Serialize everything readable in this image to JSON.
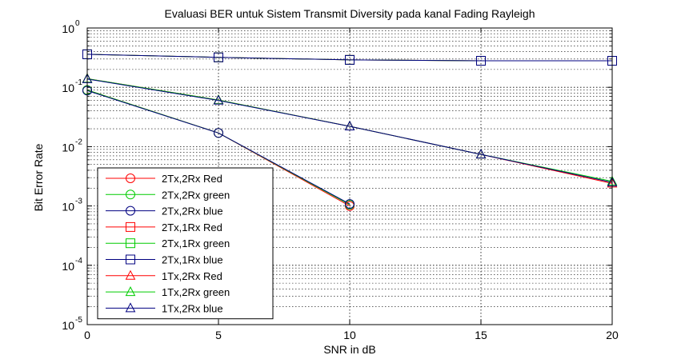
{
  "chart_data": {
    "type": "line",
    "title": "Evaluasi BER untuk Sistem Transmit Diversity pada kanal Fading Rayleigh",
    "xlabel": "SNR in dB",
    "ylabel": "Bit Error Rate",
    "xlim": [
      0,
      20
    ],
    "ylim": [
      1e-05,
      1
    ],
    "yscale": "log",
    "grid": true,
    "legend_position": "bottom-left",
    "xticks": [
      "0",
      "5",
      "10",
      "15",
      "20"
    ],
    "yticks": [
      {
        "base": "10",
        "exp": "0"
      },
      {
        "base": "10",
        "exp": "-1"
      },
      {
        "base": "10",
        "exp": "-2"
      },
      {
        "base": "10",
        "exp": "-3"
      },
      {
        "base": "10",
        "exp": "-4"
      },
      {
        "base": "10",
        "exp": "-5"
      }
    ],
    "series": [
      {
        "name": "2Tx,2Rx Red",
        "color": "#ff0000",
        "marker": "circle",
        "x": [
          0,
          5,
          10
        ],
        "y": [
          0.09,
          0.017,
          0.001
        ]
      },
      {
        "name": "2Tx,2Rx green",
        "color": "#00cc00",
        "marker": "circle",
        "x": [
          0,
          5,
          10
        ],
        "y": [
          0.09,
          0.017,
          0.00105
        ]
      },
      {
        "name": "2Tx,2Rx blue",
        "color": "#000080",
        "marker": "circle",
        "x": [
          0,
          5,
          10
        ],
        "y": [
          0.088,
          0.017,
          0.00108
        ]
      },
      {
        "name": "2Tx,1Rx Red",
        "color": "#ff0000",
        "marker": "square",
        "x": [
          0,
          5,
          10,
          15,
          20
        ],
        "y": [
          0.36,
          0.32,
          0.29,
          0.28,
          0.28
        ]
      },
      {
        "name": "2Tx,1Rx green",
        "color": "#00cc00",
        "marker": "square",
        "x": [
          0,
          5,
          10,
          15,
          20
        ],
        "y": [
          0.36,
          0.32,
          0.29,
          0.28,
          0.28
        ]
      },
      {
        "name": "2Tx,1Rx blue",
        "color": "#000080",
        "marker": "square",
        "x": [
          0,
          5,
          10,
          15,
          20
        ],
        "y": [
          0.36,
          0.32,
          0.29,
          0.28,
          0.28
        ]
      },
      {
        "name": "1Tx,2Rx Red",
        "color": "#ff0000",
        "marker": "triangle",
        "x": [
          0,
          5,
          10,
          15,
          20
        ],
        "y": [
          0.14,
          0.061,
          0.022,
          0.0074,
          0.0024
        ]
      },
      {
        "name": "1Tx,2Rx green",
        "color": "#00cc00",
        "marker": "triangle",
        "x": [
          0,
          5,
          10,
          15,
          20
        ],
        "y": [
          0.14,
          0.061,
          0.022,
          0.0074,
          0.0026
        ]
      },
      {
        "name": "1Tx,2Rx blue",
        "color": "#000080",
        "marker": "triangle",
        "x": [
          0,
          5,
          10,
          15,
          20
        ],
        "y": [
          0.138,
          0.06,
          0.022,
          0.0074,
          0.0025
        ]
      }
    ]
  }
}
